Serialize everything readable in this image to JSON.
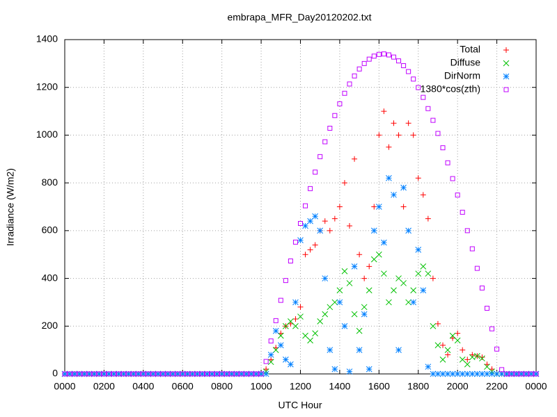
{
  "chart_data": {
    "type": "scatter",
    "title": "embrapa_MFR_Day20120202.txt",
    "x_label": "UTC Hour",
    "y_label": "Irradiance (W/m2)",
    "xlim": [
      0,
      24
    ],
    "ylim": [
      0,
      1400
    ],
    "xticks": [
      {
        "value": 0,
        "label": "0000"
      },
      {
        "value": 2,
        "label": "0200"
      },
      {
        "value": 4,
        "label": "0400"
      },
      {
        "value": 6,
        "label": "0600"
      },
      {
        "value": 8,
        "label": "0800"
      },
      {
        "value": 10,
        "label": "1000"
      },
      {
        "value": 12,
        "label": "1200"
      },
      {
        "value": 14,
        "label": "1400"
      },
      {
        "value": 16,
        "label": "1600"
      },
      {
        "value": 18,
        "label": "1800"
      },
      {
        "value": 20,
        "label": "2000"
      },
      {
        "value": 22,
        "label": "2200"
      },
      {
        "value": 24,
        "label": "0000"
      }
    ],
    "yticks": [
      0,
      200,
      400,
      600,
      800,
      1000,
      1200,
      1400
    ],
    "grid": true,
    "legend": "top-right",
    "x": [
      0,
      0.25,
      0.5,
      0.75,
      1,
      1.25,
      1.5,
      1.75,
      2,
      2.25,
      2.5,
      2.75,
      3,
      3.25,
      3.5,
      3.75,
      4,
      4.25,
      4.5,
      4.75,
      5,
      5.25,
      5.5,
      5.75,
      6,
      6.25,
      6.5,
      6.75,
      7,
      7.25,
      7.5,
      7.75,
      8,
      8.25,
      8.5,
      8.75,
      9,
      9.25,
      9.5,
      9.75,
      10,
      10.25,
      10.5,
      10.75,
      11,
      11.25,
      11.5,
      11.75,
      12,
      12.25,
      12.5,
      12.75,
      13,
      13.25,
      13.5,
      13.75,
      14,
      14.25,
      14.5,
      14.75,
      15,
      15.25,
      15.5,
      15.75,
      16,
      16.25,
      16.5,
      16.75,
      17,
      17.25,
      17.5,
      17.75,
      18,
      18.25,
      18.5,
      18.75,
      19,
      19.25,
      19.5,
      19.75,
      20,
      20.25,
      20.5,
      20.75,
      21,
      21.25,
      21.5,
      21.75,
      22,
      22.25,
      22.5,
      22.75,
      23,
      23.25,
      23.5,
      23.75,
      24
    ],
    "series": [
      {
        "name": "Total",
        "color": "#ff0000",
        "marker": "plus",
        "values": [
          0,
          0,
          0,
          0,
          0,
          0,
          0,
          0,
          0,
          0,
          0,
          0,
          0,
          0,
          0,
          0,
          0,
          0,
          0,
          0,
          0,
          0,
          0,
          0,
          0,
          0,
          0,
          0,
          0,
          0,
          0,
          0,
          0,
          0,
          0,
          0,
          0,
          0,
          0,
          0,
          0,
          20,
          60,
          110,
          170,
          200,
          210,
          230,
          280,
          500,
          520,
          540,
          600,
          640,
          600,
          650,
          700,
          800,
          620,
          900,
          500,
          400,
          450,
          700,
          1000,
          1100,
          950,
          1050,
          1000,
          700,
          1050,
          1000,
          820,
          750,
          650,
          400,
          210,
          120,
          80,
          150,
          170,
          100,
          60,
          80,
          75,
          70,
          40,
          20,
          0,
          0,
          0,
          0,
          0,
          0,
          0,
          0,
          0
        ]
      },
      {
        "name": "Diffuse",
        "color": "#00c000",
        "marker": "cross",
        "values": [
          0,
          0,
          0,
          0,
          0,
          0,
          0,
          0,
          0,
          0,
          0,
          0,
          0,
          0,
          0,
          0,
          0,
          0,
          0,
          0,
          0,
          0,
          0,
          0,
          0,
          0,
          0,
          0,
          0,
          0,
          0,
          0,
          0,
          0,
          0,
          0,
          0,
          0,
          0,
          0,
          0,
          10,
          50,
          100,
          160,
          200,
          220,
          200,
          240,
          160,
          140,
          170,
          220,
          250,
          280,
          300,
          350,
          430,
          380,
          250,
          180,
          280,
          350,
          480,
          500,
          420,
          300,
          350,
          400,
          380,
          300,
          350,
          420,
          450,
          420,
          200,
          120,
          60,
          100,
          160,
          140,
          60,
          40,
          70,
          75,
          65,
          30,
          10,
          0,
          0,
          0,
          0,
          0,
          0,
          0,
          0,
          0
        ]
      },
      {
        "name": "DirNorm",
        "color": "#0080ff",
        "marker": "star",
        "values": [
          0,
          0,
          0,
          0,
          0,
          0,
          0,
          0,
          0,
          0,
          0,
          0,
          0,
          0,
          0,
          0,
          0,
          0,
          0,
          0,
          0,
          0,
          0,
          0,
          0,
          0,
          0,
          0,
          0,
          0,
          0,
          0,
          0,
          0,
          0,
          0,
          0,
          0,
          0,
          0,
          0,
          0,
          80,
          180,
          120,
          60,
          40,
          300,
          560,
          620,
          640,
          660,
          600,
          400,
          100,
          20,
          300,
          200,
          10,
          450,
          100,
          250,
          20,
          600,
          700,
          550,
          820,
          750,
          100,
          780,
          600,
          300,
          520,
          350,
          30,
          0,
          0,
          0,
          0,
          0,
          0,
          0,
          0,
          0,
          0,
          0,
          0,
          0,
          0,
          0,
          0,
          0,
          0,
          0,
          0,
          0,
          0
        ]
      },
      {
        "name": "1380*cos(zth)",
        "color": "#c000ff",
        "marker": "square",
        "values": [
          0,
          0,
          0,
          0,
          0,
          0,
          0,
          0,
          0,
          0,
          0,
          0,
          0,
          0,
          0,
          0,
          0,
          0,
          0,
          0,
          0,
          0,
          0,
          0,
          0,
          0,
          0,
          0,
          0,
          0,
          0,
          0,
          0,
          0,
          0,
          0,
          0,
          0,
          0,
          0,
          0,
          52,
          138,
          223,
          308,
          391,
          473,
          552,
          630,
          704,
          776,
          845,
          910,
          972,
          1029,
          1082,
          1131,
          1175,
          1214,
          1248,
          1277,
          1300,
          1318,
          1331,
          1338,
          1340,
          1336,
          1327,
          1311,
          1291,
          1266,
          1235,
          1199,
          1158,
          1111,
          1062,
          1007,
          947,
          884,
          818,
          749,
          677,
          600,
          524,
          442,
          360,
          275,
          189,
          104,
          18,
          0,
          0,
          0,
          0,
          0,
          0,
          0
        ]
      }
    ]
  }
}
